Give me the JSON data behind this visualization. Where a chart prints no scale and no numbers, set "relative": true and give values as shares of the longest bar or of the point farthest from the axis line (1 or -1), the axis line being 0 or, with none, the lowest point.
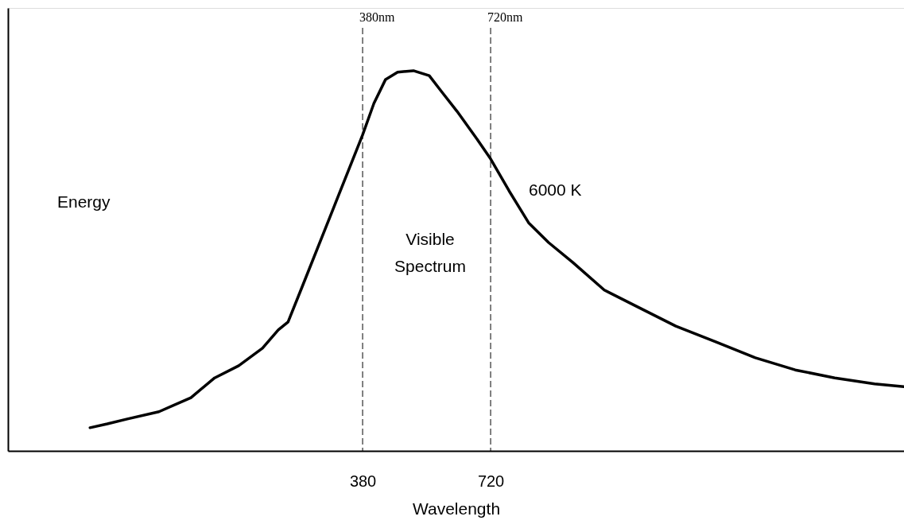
{
  "chart_data": {
    "type": "line",
    "relative": true,
    "xlabel": "Wavelength",
    "ylabel": "Energy",
    "xlim": [
      -562,
      1818
    ],
    "xticks": [
      380,
      720
    ],
    "grid": false,
    "marker": "none",
    "line_style": "solid",
    "series": [
      {
        "name": "6000 K",
        "color": "#000000",
        "x": [
          -344,
          -298,
          -245,
          -161,
          -76,
          -13,
          51,
          114,
          156,
          182,
          220,
          304,
          380,
          410,
          441,
          473,
          515,
          557,
          589,
          631,
          684,
          720,
          769,
          821,
          874,
          938,
          1022,
          1106,
          1212,
          1318,
          1423,
          1529,
          1634,
          1740,
          1818
        ],
        "values": [
          0.061,
          0.071,
          0.084,
          0.103,
          0.14,
          0.192,
          0.224,
          0.27,
          0.318,
          0.339,
          0.433,
          0.642,
          0.831,
          0.914,
          0.977,
          0.996,
          1.0,
          0.987,
          0.946,
          0.893,
          0.82,
          0.768,
          0.684,
          0.6,
          0.548,
          0.496,
          0.423,
          0.381,
          0.328,
          0.287,
          0.245,
          0.213,
          0.192,
          0.176,
          0.169
        ]
      }
    ],
    "ref_lines": [
      {
        "axis": "x",
        "value": 380,
        "label": "380nm",
        "color": "#000000",
        "line_style": "dashed"
      },
      {
        "axis": "x",
        "value": 720,
        "label": "720nm",
        "color": "#000000",
        "line_style": "dashed"
      }
    ],
    "annotations": [
      "Visible Spectrum"
    ]
  }
}
